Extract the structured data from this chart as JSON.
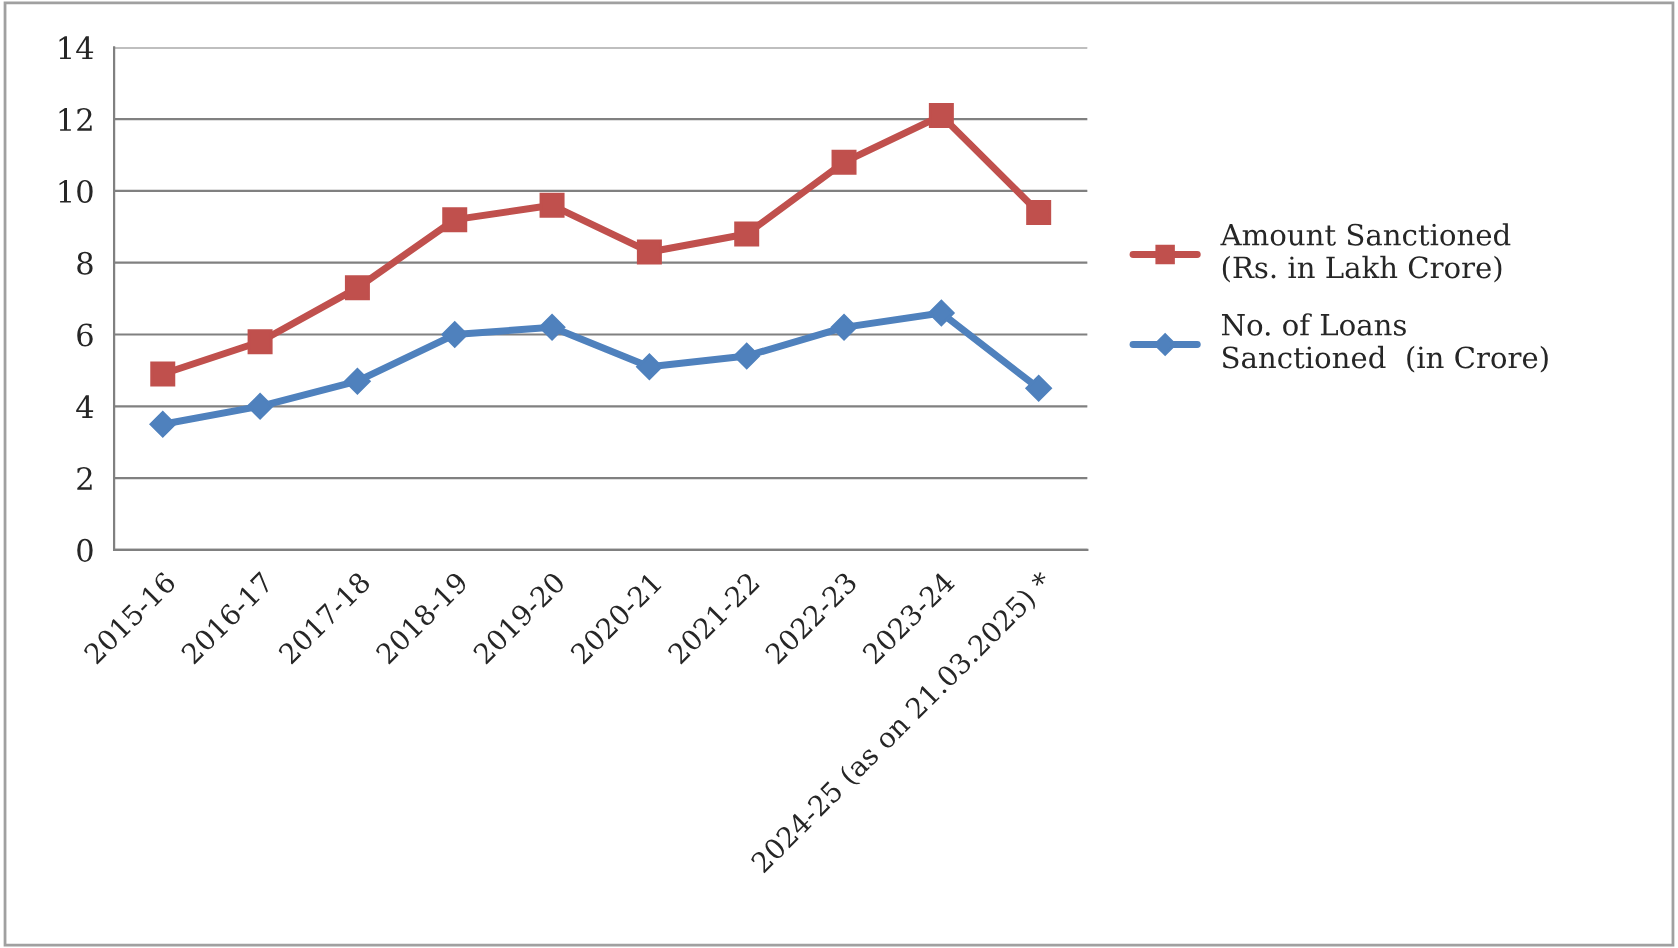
{
  "chart_data": {
    "type": "line",
    "categories": [
      "2015-16",
      "2016-17",
      "2017-18",
      "2018-19",
      "2019-20",
      "2020-21",
      "2021-22",
      "2022-23",
      "2023-24",
      "2024-25 (as on 21.03.2025) *"
    ],
    "series": [
      {
        "name": "Amount Sanctioned  (Rs. in Lakh Crore)",
        "color": "#c0504d",
        "marker": "square",
        "values": [
          4.9,
          5.8,
          7.3,
          9.2,
          9.6,
          8.3,
          8.8,
          10.8,
          12.1,
          9.4
        ]
      },
      {
        "name": "No. of Loans Sanctioned  (in Crore)",
        "color": "#4f81bd",
        "marker": "diamond",
        "values": [
          3.5,
          4.0,
          4.7,
          6.0,
          6.2,
          5.1,
          5.4,
          6.2,
          6.6,
          4.5
        ]
      }
    ],
    "ylim": [
      0,
      14
    ],
    "yticks": [
      0,
      2,
      4,
      6,
      8,
      10,
      12,
      14
    ],
    "grid": "y",
    "legend": "right",
    "line_style": "solid"
  }
}
